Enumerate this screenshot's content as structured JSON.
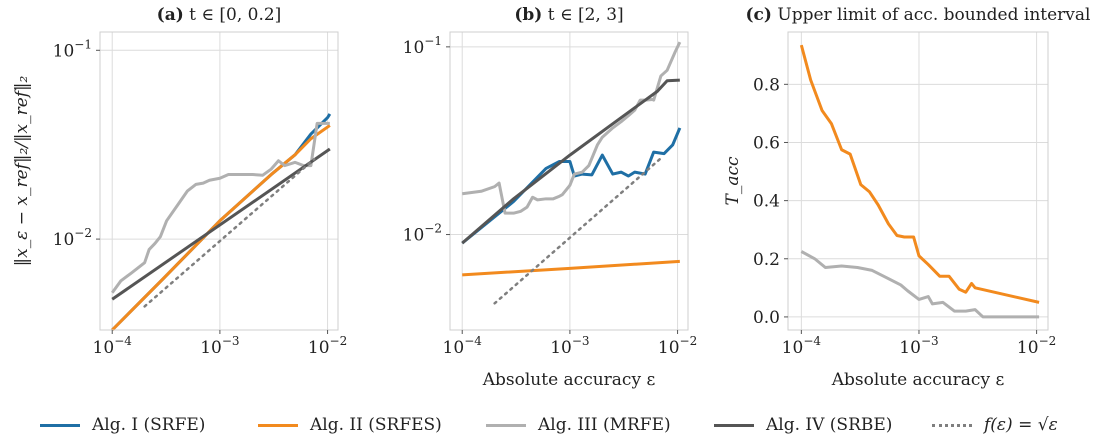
{
  "chart_data": [
    {
      "type": "line",
      "title_bold": "(a)",
      "title_rest": " t ∈ [0, 0.2]",
      "xlabel": "",
      "ylabel": "‖x_ε − x_ref‖₂/‖x_ref‖₂",
      "x_scale": "log",
      "y_scale": "log",
      "xlim": [
        7.7e-05,
        0.0125
      ],
      "ylim": [
        0.0033,
        0.125
      ],
      "x_ticks": [
        {
          "v": 0.0001,
          "base": "10",
          "exp": "−4"
        },
        {
          "v": 0.001,
          "base": "10",
          "exp": "−3"
        },
        {
          "v": 0.01,
          "base": "10",
          "exp": "−2"
        }
      ],
      "y_ticks": [
        {
          "v": 0.01,
          "base": "10",
          "exp": "−2"
        },
        {
          "v": 0.1,
          "base": "10",
          "exp": "−1"
        }
      ],
      "grid": true,
      "series": [
        {
          "key": "s1",
          "color": "#1f6fa5",
          "width": 3,
          "points": [
            [
              0.0001,
              0.0033
            ],
            [
              0.0003,
              0.0062
            ],
            [
              0.001,
              0.0125
            ],
            [
              0.003,
              0.022
            ],
            [
              0.005,
              0.028
            ],
            [
              0.007,
              0.036
            ],
            [
              0.01,
              0.044
            ],
            [
              0.0105,
              0.046
            ]
          ]
        },
        {
          "key": "s2",
          "color": "#f28a1e",
          "width": 3,
          "points": [
            [
              0.0001,
              0.0033
            ],
            [
              0.0003,
              0.0062
            ],
            [
              0.001,
              0.0125
            ],
            [
              0.003,
              0.022
            ],
            [
              0.005,
              0.028
            ],
            [
              0.007,
              0.034
            ],
            [
              0.0105,
              0.04
            ]
          ]
        },
        {
          "key": "s3",
          "color": "#b0b0b0",
          "width": 3,
          "points": [
            [
              0.0001,
              0.0052
            ],
            [
              0.00012,
              0.006
            ],
            [
              0.00015,
              0.0066
            ],
            [
              0.0002,
              0.0075
            ],
            [
              0.00022,
              0.0088
            ],
            [
              0.00025,
              0.0095
            ],
            [
              0.00028,
              0.0103
            ],
            [
              0.00032,
              0.0125
            ],
            [
              0.0004,
              0.015
            ],
            [
              0.0005,
              0.018
            ],
            [
              0.0006,
              0.0195
            ],
            [
              0.0007,
              0.0198
            ],
            [
              0.0008,
              0.0205
            ],
            [
              0.001,
              0.021
            ],
            [
              0.0012,
              0.022
            ],
            [
              0.0015,
              0.022
            ],
            [
              0.002,
              0.022
            ],
            [
              0.0025,
              0.0218
            ],
            [
              0.003,
              0.0235
            ],
            [
              0.0035,
              0.026
            ],
            [
              0.004,
              0.0245
            ],
            [
              0.005,
              0.0255
            ],
            [
              0.006,
              0.0245
            ],
            [
              0.007,
              0.0245
            ],
            [
              0.008,
              0.041
            ],
            [
              0.0105,
              0.041
            ]
          ]
        },
        {
          "key": "s4",
          "color": "#555555",
          "width": 3,
          "points": [
            [
              0.0001,
              0.0048
            ],
            [
              0.0105,
              0.03
            ]
          ]
        },
        {
          "key": "ref",
          "color": "#7f7f7f",
          "width": 2.5,
          "dash": "2,5",
          "points": [
            [
              0.0002,
              0.0044
            ],
            [
              0.0075,
              0.0265
            ]
          ]
        }
      ]
    },
    {
      "type": "line",
      "title_bold": "(b)",
      "title_rest": " t ∈ [2, 3]",
      "xlabel": "Absolute accuracy ε",
      "ylabel": "",
      "x_scale": "log",
      "y_scale": "log",
      "xlim": [
        7.7e-05,
        0.0125
      ],
      "ylim": [
        0.0031,
        0.12
      ],
      "x_ticks": [
        {
          "v": 0.0001,
          "base": "10",
          "exp": "−4"
        },
        {
          "v": 0.001,
          "base": "10",
          "exp": "−3"
        },
        {
          "v": 0.01,
          "base": "10",
          "exp": "−2"
        }
      ],
      "y_ticks": [
        {
          "v": 0.01,
          "base": "10",
          "exp": "−2"
        },
        {
          "v": 0.1,
          "base": "10",
          "exp": "−1"
        }
      ],
      "grid": true,
      "series": [
        {
          "key": "s1",
          "color": "#1f6fa5",
          "width": 3,
          "points": [
            [
              0.0001,
              0.009
            ],
            [
              0.0003,
              0.015
            ],
            [
              0.0006,
              0.0225
            ],
            [
              0.0008,
              0.0245
            ],
            [
              0.001,
              0.0245
            ],
            [
              0.0011,
              0.0205
            ],
            [
              0.0013,
              0.021
            ],
            [
              0.0016,
              0.0208
            ],
            [
              0.002,
              0.0265
            ],
            [
              0.0025,
              0.021
            ],
            [
              0.003,
              0.0215
            ],
            [
              0.0035,
              0.0205
            ],
            [
              0.004,
              0.0215
            ],
            [
              0.005,
              0.021
            ],
            [
              0.006,
              0.0275
            ],
            [
              0.0075,
              0.027
            ],
            [
              0.009,
              0.03
            ],
            [
              0.0105,
              0.037
            ]
          ]
        },
        {
          "key": "s2",
          "color": "#f28a1e",
          "width": 3,
          "points": [
            [
              0.0001,
              0.0061
            ],
            [
              0.001,
              0.0066
            ],
            [
              0.0105,
              0.0072
            ]
          ]
        },
        {
          "key": "s3",
          "color": "#b0b0b0",
          "width": 3,
          "points": [
            [
              0.0001,
              0.0165
            ],
            [
              0.00015,
              0.017
            ],
            [
              0.0002,
              0.018
            ],
            [
              0.00022,
              0.0188
            ],
            [
              0.00025,
              0.013
            ],
            [
              0.0003,
              0.013
            ],
            [
              0.00035,
              0.0133
            ],
            [
              0.0004,
              0.014
            ],
            [
              0.00045,
              0.0158
            ],
            [
              0.0005,
              0.0153
            ],
            [
              0.0006,
              0.0155
            ],
            [
              0.0007,
              0.0155
            ],
            [
              0.0008,
              0.016
            ],
            [
              0.00085,
              0.0163
            ],
            [
              0.001,
              0.0183
            ],
            [
              0.0011,
              0.021
            ],
            [
              0.0013,
              0.0215
            ],
            [
              0.0015,
              0.0233
            ],
            [
              0.0018,
              0.03
            ],
            [
              0.002,
              0.033
            ],
            [
              0.0025,
              0.037
            ],
            [
              0.003,
              0.04
            ],
            [
              0.0035,
              0.043
            ],
            [
              0.004,
              0.046
            ],
            [
              0.0045,
              0.052
            ],
            [
              0.005,
              0.052
            ],
            [
              0.006,
              0.0525
            ],
            [
              0.006,
              0.052
            ],
            [
              0.007,
              0.07
            ],
            [
              0.008,
              0.075
            ],
            [
              0.0095,
              0.094
            ],
            [
              0.0105,
              0.106
            ]
          ]
        },
        {
          "key": "s4",
          "color": "#555555",
          "width": 3,
          "points": [
            [
              0.0001,
              0.009
            ],
            [
              0.0003,
              0.0155
            ],
            [
              0.001,
              0.0265
            ],
            [
              0.003,
              0.042
            ],
            [
              0.005,
              0.052
            ],
            [
              0.0065,
              0.058
            ],
            [
              0.008,
              0.066
            ],
            [
              0.0105,
              0.0665
            ]
          ]
        },
        {
          "key": "ref",
          "color": "#7f7f7f",
          "width": 2.5,
          "dash": "2,5",
          "points": [
            [
              0.0002,
              0.0043
            ],
            [
              0.007,
              0.0255
            ]
          ]
        }
      ]
    },
    {
      "type": "line",
      "title_bold": "(c)",
      "title_rest": " Upper limit of acc. bounded interval",
      "xlabel": "Absolute accuracy ε",
      "ylabel": "T_acc",
      "x_scale": "log",
      "y_scale": "linear",
      "xlim": [
        7.7e-05,
        0.0125
      ],
      "ylim": [
        -0.045,
        0.98
      ],
      "x_ticks": [
        {
          "v": 0.0001,
          "base": "10",
          "exp": "−4"
        },
        {
          "v": 0.001,
          "base": "10",
          "exp": "−3"
        },
        {
          "v": 0.01,
          "base": "10",
          "exp": "−2"
        }
      ],
      "y_ticks": [
        {
          "v": 0.0,
          "label": "0.0"
        },
        {
          "v": 0.2,
          "label": "0.2"
        },
        {
          "v": 0.4,
          "label": "0.4"
        },
        {
          "v": 0.6,
          "label": "0.6"
        },
        {
          "v": 0.8,
          "label": "0.8"
        }
      ],
      "grid": true,
      "series": [
        {
          "key": "s2",
          "color": "#f28a1e",
          "width": 3,
          "points": [
            [
              0.0001,
              0.935
            ],
            [
              0.00012,
              0.815
            ],
            [
              0.00015,
              0.71
            ],
            [
              0.00018,
              0.665
            ],
            [
              0.00022,
              0.575
            ],
            [
              0.00026,
              0.56
            ],
            [
              0.00032,
              0.455
            ],
            [
              0.00038,
              0.43
            ],
            [
              0.00045,
              0.385
            ],
            [
              0.00055,
              0.32
            ],
            [
              0.00065,
              0.28
            ],
            [
              0.00075,
              0.275
            ],
            [
              0.0009,
              0.275
            ],
            [
              0.001,
              0.21
            ],
            [
              0.0012,
              0.18
            ],
            [
              0.0015,
              0.14
            ],
            [
              0.0018,
              0.14
            ],
            [
              0.0022,
              0.095
            ],
            [
              0.0025,
              0.085
            ],
            [
              0.0028,
              0.115
            ],
            [
              0.003,
              0.1
            ],
            [
              0.0105,
              0.05
            ]
          ]
        },
        {
          "key": "s3",
          "color": "#b0b0b0",
          "width": 3,
          "points": [
            [
              0.0001,
              0.225
            ],
            [
              0.00013,
              0.2
            ],
            [
              0.00016,
              0.17
            ],
            [
              0.00022,
              0.175
            ],
            [
              0.0003,
              0.17
            ],
            [
              0.0004,
              0.16
            ],
            [
              0.0005,
              0.14
            ],
            [
              0.0007,
              0.11
            ],
            [
              0.0008,
              0.09
            ],
            [
              0.001,
              0.06
            ],
            [
              0.0012,
              0.07
            ],
            [
              0.0013,
              0.045
            ],
            [
              0.0016,
              0.05
            ],
            [
              0.002,
              0.02
            ],
            [
              0.0025,
              0.02
            ],
            [
              0.003,
              0.025
            ],
            [
              0.0035,
              0.0
            ],
            [
              0.0045,
              0.0
            ],
            [
              0.0105,
              0.0
            ]
          ]
        }
      ]
    }
  ],
  "legend": [
    {
      "key": "s1",
      "label": "Alg. I (SRFE)",
      "color": "#1f6fa5",
      "dash": ""
    },
    {
      "key": "s2",
      "label": "Alg. II (SRFES)",
      "color": "#f28a1e",
      "dash": ""
    },
    {
      "key": "s3",
      "label": "Alg. III (MRFE)",
      "color": "#b0b0b0",
      "dash": ""
    },
    {
      "key": "s4",
      "label": "Alg. IV (SRBE)",
      "color": "#555555",
      "dash": ""
    },
    {
      "key": "ref",
      "label": "f(ε) = √ε",
      "color": "#7f7f7f",
      "dash": "dotted"
    }
  ]
}
